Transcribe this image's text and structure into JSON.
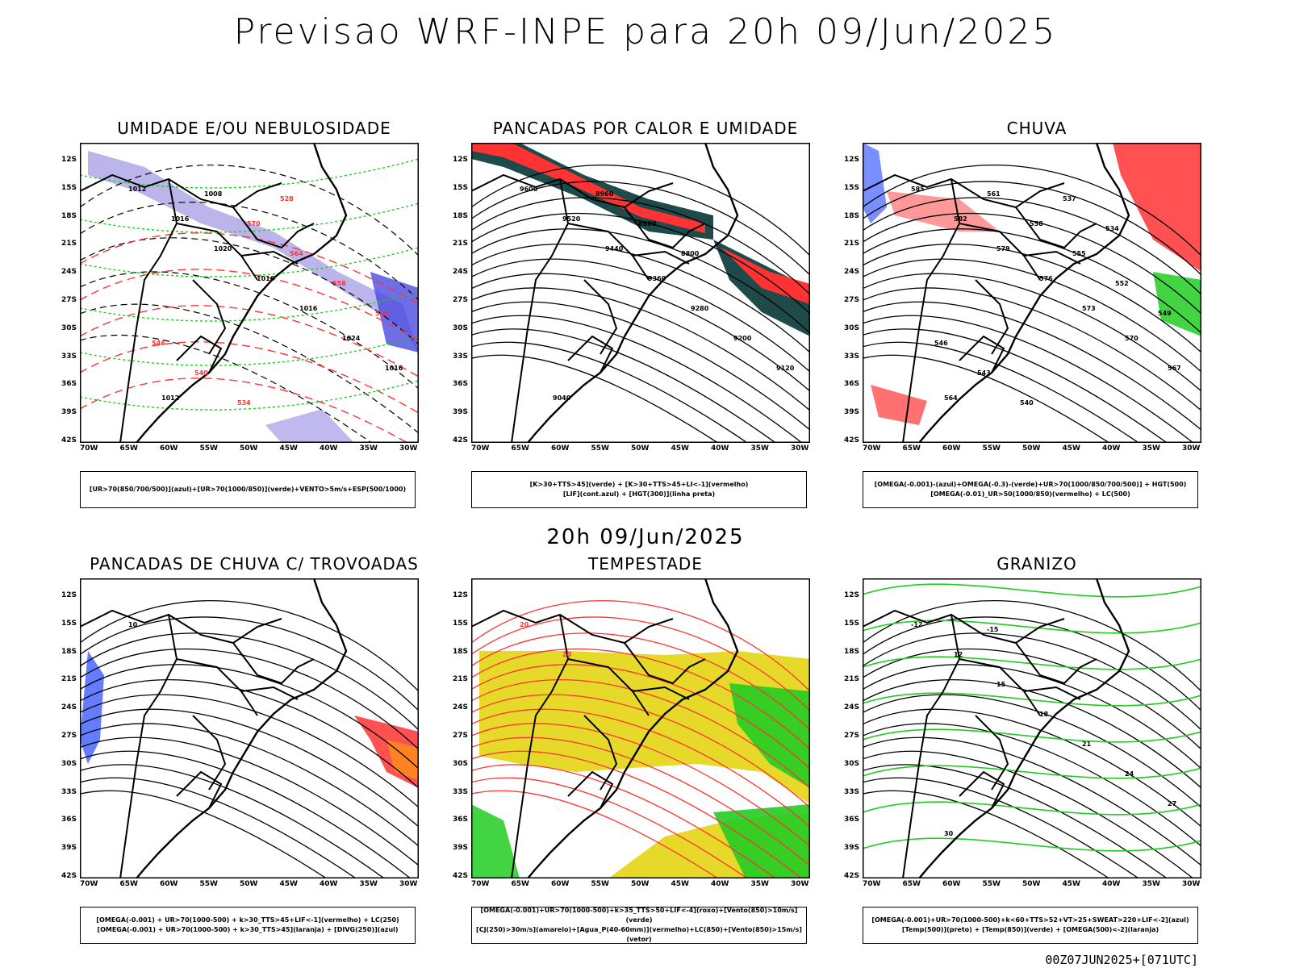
{
  "main_title": "Previsao WRF-INPE  para 20h 09/Jun/2025",
  "middle_time": "20h 09/Jun/2025",
  "footer": "00Z07JUN2025+[071UTC]",
  "lat_labels": [
    "12S",
    "15S",
    "18S",
    "21S",
    "24S",
    "27S",
    "30S",
    "33S",
    "36S",
    "39S",
    "42S"
  ],
  "lon_labels": [
    "70W",
    "65W",
    "60W",
    "55W",
    "50W",
    "45W",
    "40W",
    "35W",
    "30W"
  ],
  "colors": {
    "red": "#ff3333",
    "green": "#22cc22",
    "blue": "#2244ff",
    "lavender": "#b0a8e8",
    "yellow": "#e6d92a",
    "orange": "#ff8a1c",
    "darkteal": "#1f4a4a"
  },
  "panels": [
    {
      "title": "UMIDADE E/OU NEBULOSIDADE",
      "legend": [
        "[UR>70(850/700/500)](azul)+[UR>70(1000/850)](verde)+VENTO>5m/s+ESP(500/1000)"
      ],
      "contour_labels": [
        "1012",
        "1016",
        "1020",
        "1016",
        "1016",
        "1024",
        "1016",
        "1012",
        "1008",
        "570",
        "564",
        "558",
        "552",
        "546",
        "540",
        "534",
        "528"
      ]
    },
    {
      "title": "PANCADAS POR CALOR E UMIDADE",
      "legend": [
        "[K>30+TTS>45](verde) + [K>30+TTS>45+LI<-1](vermelho)",
        "[LIF](cont.azul) + [HGT(300)](linha preta)"
      ],
      "contour_labels": [
        "9600",
        "9520",
        "9440",
        "9360",
        "9280",
        "9200",
        "9120",
        "9040",
        "8960",
        "8880",
        "8800"
      ]
    },
    {
      "title": "CHUVA",
      "legend": [
        "[OMEGA(-0.001)-(azul)+OMEGA(-0.3)-(verde)+UR>70(1000/850/700/500)] + HGT(500)",
        "[OMEGA(-0.01)_UR>50(1000/850)(vermelho) + LC(500)"
      ],
      "contour_labels": [
        "585",
        "582",
        "579",
        "576",
        "573",
        "570",
        "567",
        "564",
        "561",
        "558",
        "555",
        "552",
        "549",
        "546",
        "543",
        "540",
        "537",
        "534"
      ]
    },
    {
      "title": "PANCADAS DE CHUVA C/ TROVOADAS",
      "legend": [
        "[OMEGA(-0.001) + UR>70(1000-500) + k>30_TTS>45+LIF<-1](vermelho) + LC(250)",
        "[OMEGA(-0.001) + UR>70(1000-500) + k>30_TTS>45](laranja) + [DIVG(250)](azul)"
      ],
      "contour_labels": [
        "10"
      ]
    },
    {
      "title": "TEMPESTADE",
      "legend": [
        "[OMEGA(-0.001)+UR>70(1000-500)+k>35_TTS>50+LIF<-4](roxo)+[Vento(850)>10m/s](verde)",
        "[CJ(250)>30m/s](amarelo)+[Agua_P(40-60mm)](vermelho)+LC(850)+[Vento(850)>15m/s](vetor)"
      ],
      "contour_labels": [
        "20",
        "20"
      ]
    },
    {
      "title": "GRANIZO",
      "legend": [
        "[OMEGA(-0.001)+UR>70(1000-500)+k<60+TTS>52+VT>25+SWEAT>220+LIF<-2](azul)",
        "[Temp(500)](preto) + [Temp(850)](verde) + [OMEGA(500)<-2](laranja)"
      ],
      "contour_labels": [
        "-12",
        "12",
        "15",
        "18",
        "21",
        "24",
        "27",
        "30",
        "-15"
      ]
    }
  ]
}
